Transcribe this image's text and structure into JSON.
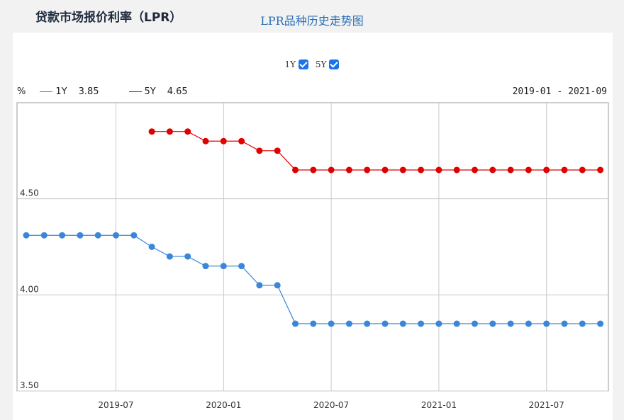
{
  "page": {
    "title": "贷款市场报价利率（LPR）"
  },
  "chart_header": {
    "title": "LPR品种历史走势图",
    "toggles": [
      {
        "label": "1Y",
        "checked": true
      },
      {
        "label": "5Y",
        "checked": true
      }
    ],
    "unit": "%",
    "legend": [
      {
        "name": "1Y",
        "value": "3.85",
        "color": "#3a86d8"
      },
      {
        "name": "5Y",
        "value": "4.65",
        "color": "#e00000"
      }
    ],
    "range": {
      "start": "2019-01",
      "separator": "-",
      "end": "2021-09"
    }
  },
  "chart_data": {
    "type": "line",
    "x": [
      "2019-02",
      "2019-03",
      "2019-04",
      "2019-05",
      "2019-06",
      "2019-07",
      "2019-08",
      "2019-09",
      "2019-10",
      "2019-11",
      "2019-12",
      "2020-01",
      "2020-02",
      "2020-03",
      "2020-04",
      "2020-05",
      "2020-06",
      "2020-07",
      "2020-08",
      "2020-09",
      "2020-10",
      "2020-11",
      "2020-12",
      "2021-01",
      "2021-02",
      "2021-03",
      "2021-04",
      "2021-05",
      "2021-06",
      "2021-07",
      "2021-08",
      "2021-09",
      "2021-10"
    ],
    "xticks": [
      "2019-07",
      "2020-01",
      "2020-07",
      "2021-01",
      "2021-07"
    ],
    "yticks": [
      "3.50",
      "4.00",
      "4.50"
    ],
    "ylim": [
      3.5,
      5.0
    ],
    "grid": true,
    "series": [
      {
        "name": "1Y",
        "color": "#3a86d8",
        "values": [
          4.31,
          4.31,
          4.31,
          4.31,
          4.31,
          4.31,
          4.31,
          4.25,
          4.2,
          4.2,
          4.15,
          4.15,
          4.15,
          4.05,
          4.05,
          3.85,
          3.85,
          3.85,
          3.85,
          3.85,
          3.85,
          3.85,
          3.85,
          3.85,
          3.85,
          3.85,
          3.85,
          3.85,
          3.85,
          3.85,
          3.85,
          3.85,
          3.85
        ]
      },
      {
        "name": "5Y",
        "color": "#e00000",
        "values": [
          null,
          null,
          null,
          null,
          null,
          null,
          null,
          4.85,
          4.85,
          4.85,
          4.8,
          4.8,
          4.8,
          4.75,
          4.75,
          4.65,
          4.65,
          4.65,
          4.65,
          4.65,
          4.65,
          4.65,
          4.65,
          4.65,
          4.65,
          4.65,
          4.65,
          4.65,
          4.65,
          4.65,
          4.65,
          4.65,
          4.65
        ]
      }
    ]
  }
}
